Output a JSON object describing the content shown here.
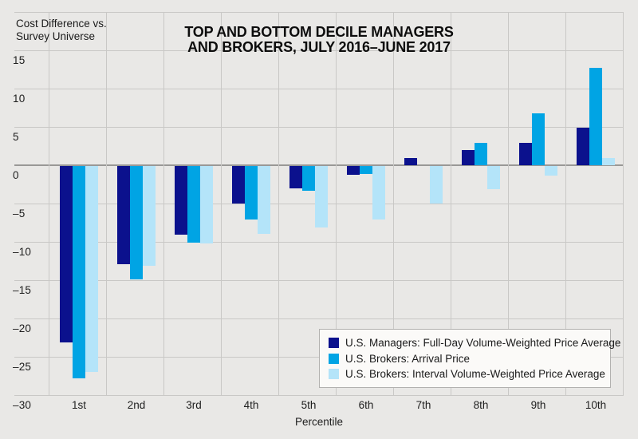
{
  "header": {
    "y_axis_title_line1": "Cost Difference vs.",
    "y_axis_title_line2": "Survey Universe",
    "title_line1": "TOP AND BOTTOM DECILE MANAGERS",
    "title_line2": "AND BROKERS, JULY 2016–JUNE 2017"
  },
  "chart_data": {
    "type": "bar",
    "title": "TOP AND BOTTOM DECILE MANAGERS AND BROKERS, JULY 2016–JUNE 2017",
    "xlabel": "Percentile",
    "ylabel": "Cost Difference vs. Survey Universe",
    "categories": [
      "1st",
      "2nd",
      "3rd",
      "4th",
      "5th",
      "6th",
      "7th",
      "8th",
      "9th",
      "10th"
    ],
    "series": [
      {
        "name": "U.S. Managers: Full-Day Volume-Weighted Price Average",
        "color": "#0b118d",
        "values": [
          -23.0,
          -12.8,
          -9.0,
          -4.9,
          -2.9,
          -1.1,
          0.9,
          2.0,
          2.9,
          4.9
        ]
      },
      {
        "name": "U.S. Brokers: Arrival Price",
        "color": "#00a4e4",
        "values": [
          -27.7,
          -14.8,
          -10.0,
          -7.0,
          -3.2,
          -1.0,
          0.0,
          2.9,
          6.8,
          12.7
        ]
      },
      {
        "name": "U.S. Brokers: Interval Volume-Weighted Price Average",
        "color": "#b4e4f9",
        "values": [
          -26.9,
          -13.0,
          -10.1,
          -8.9,
          -8.0,
          -7.0,
          -4.9,
          -3.0,
          -1.2,
          0.9
        ]
      }
    ],
    "y_ticks": [
      15,
      10,
      5,
      0,
      -5,
      -10,
      -15,
      -20,
      -25,
      -30
    ],
    "y_tick_labels": [
      "15",
      "10",
      "5",
      "0",
      "–5",
      "–10",
      "–15",
      "–20",
      "–25",
      "–30"
    ],
    "ylim": [
      -30,
      20
    ],
    "grid": true,
    "legend_position": "bottom-right"
  },
  "colors": {
    "background": "#e9e8e6",
    "gridline": "#c9c8c6",
    "zero_line": "#999896",
    "series_navy": "#0b118d",
    "series_cyan": "#00a4e4",
    "series_light_blue": "#b4e4f9",
    "legend_background": "#fbfaf8",
    "legend_border": "#b2b1af",
    "text": "#1c1c1c"
  }
}
